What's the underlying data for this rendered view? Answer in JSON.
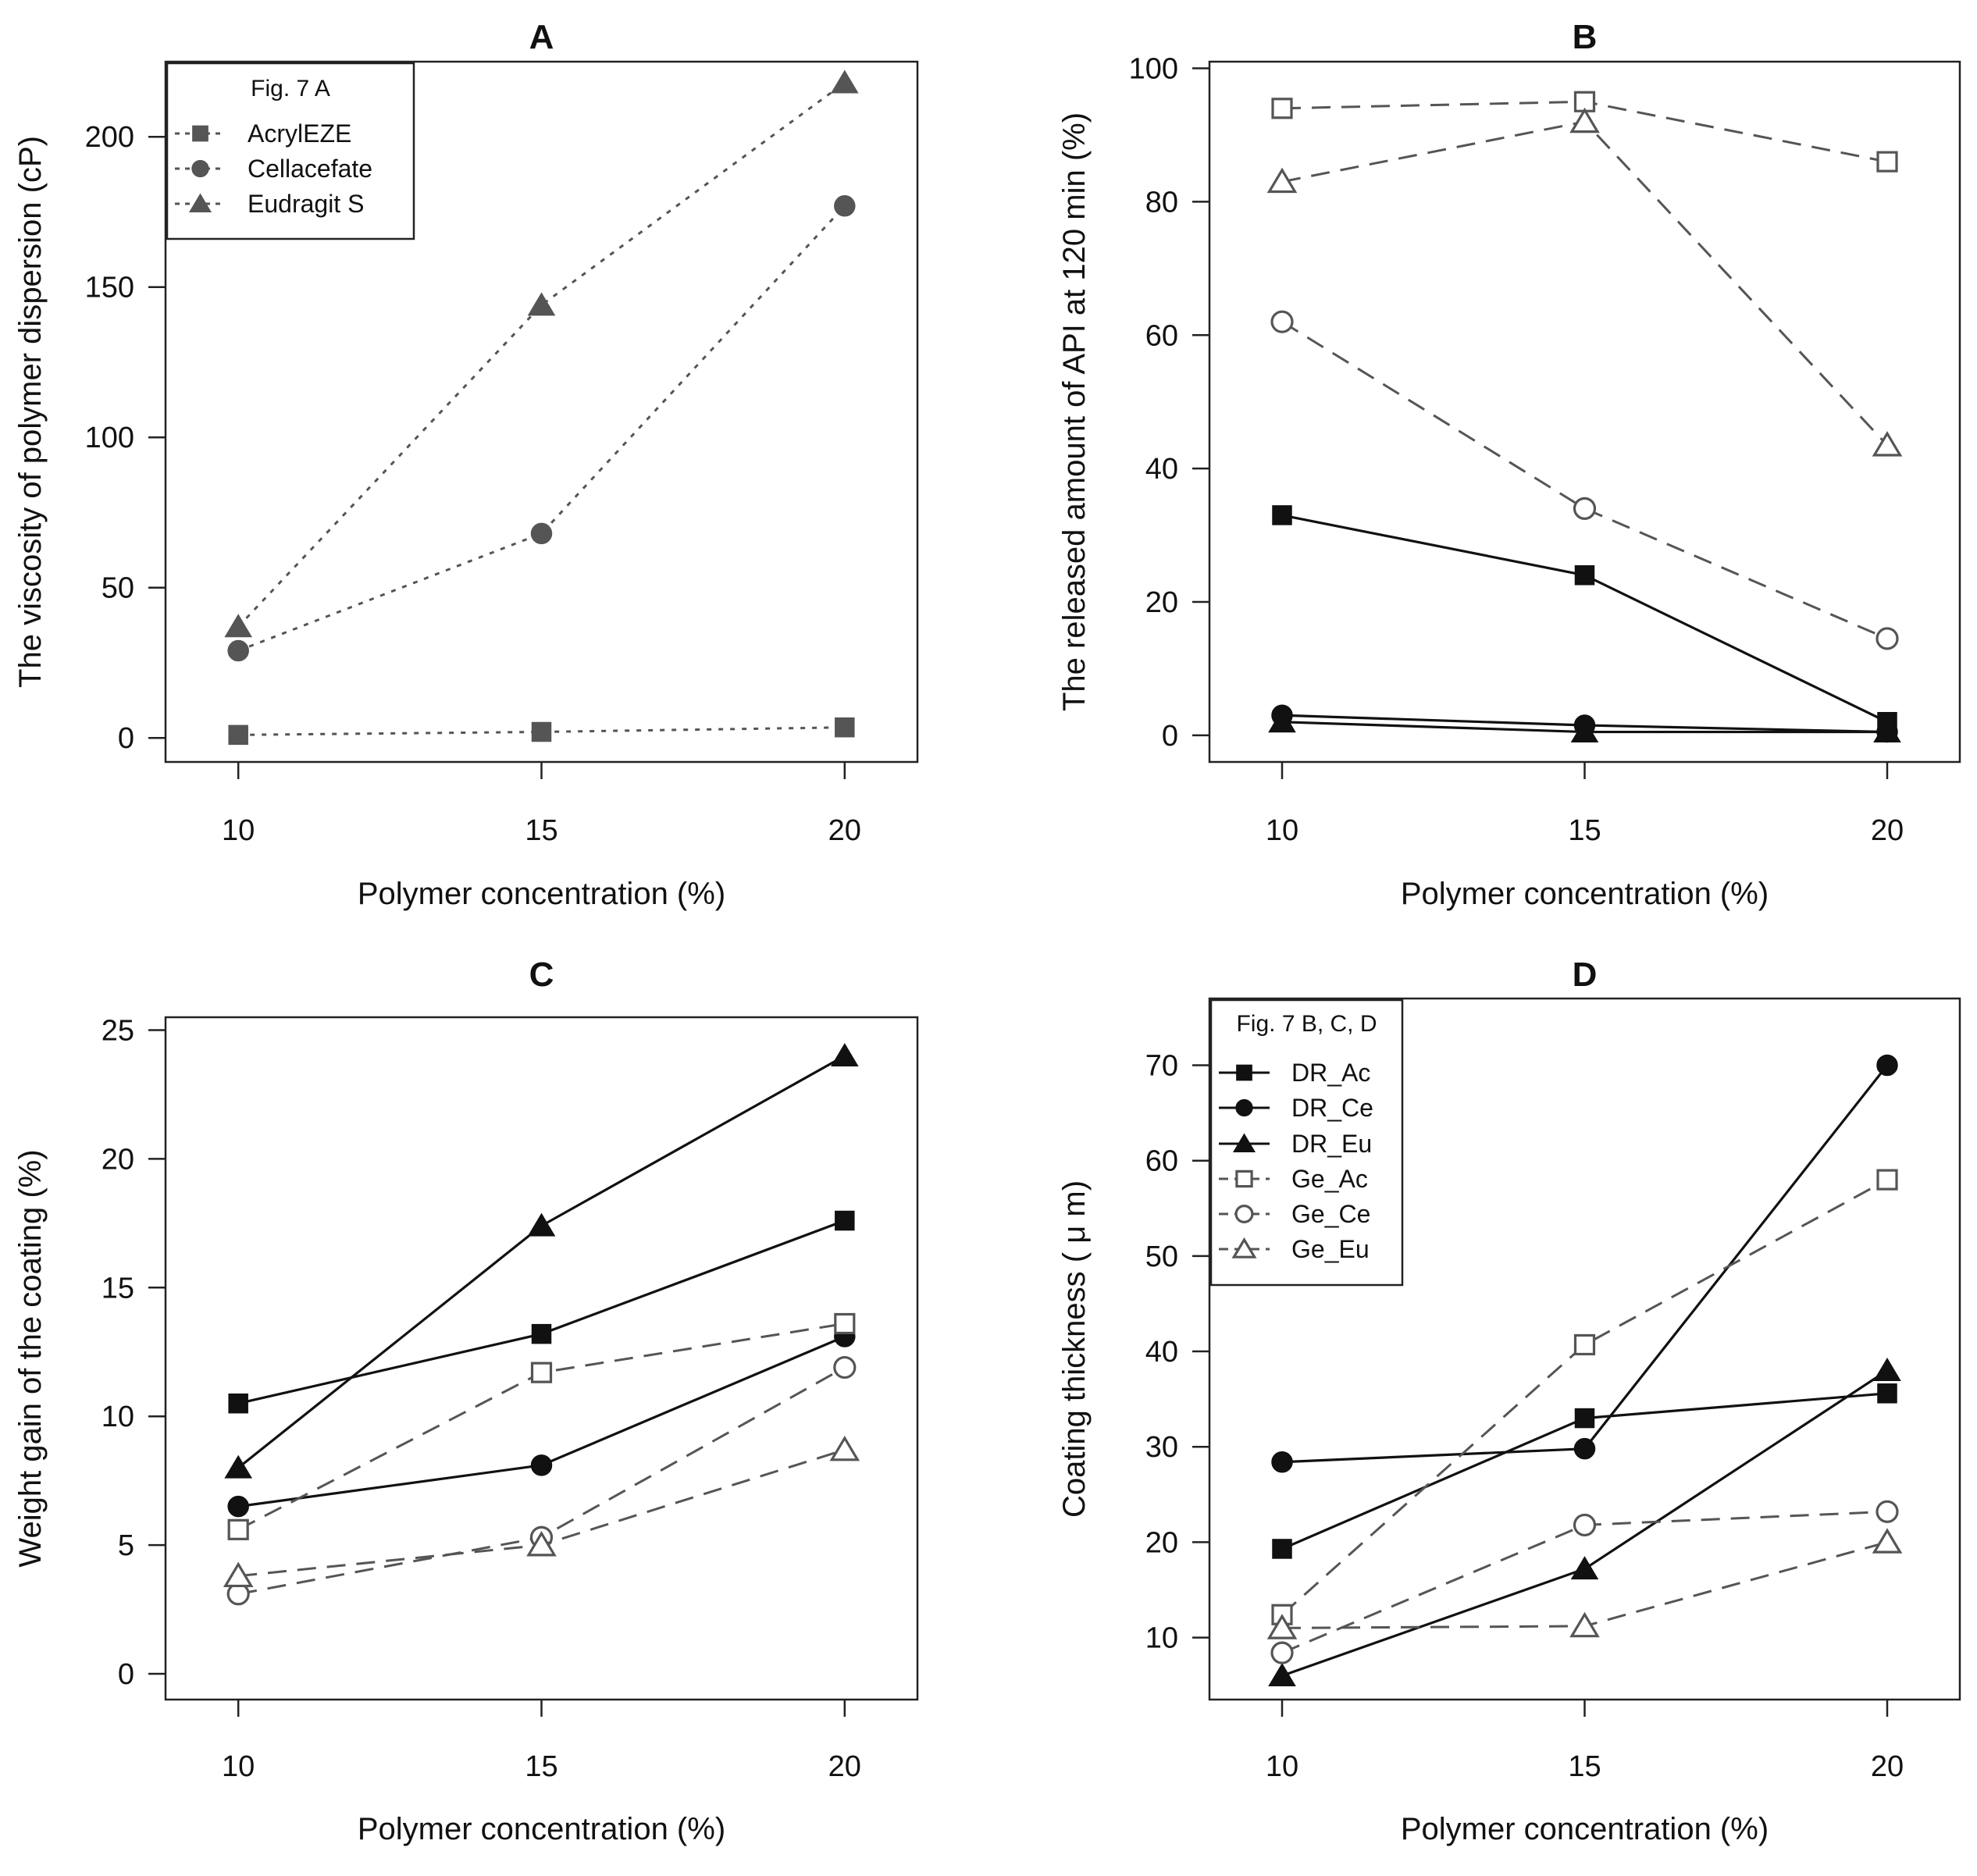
{
  "chart_data": [
    {
      "panel": "A",
      "type": "line",
      "title": "A",
      "xlabel": "Polymer concentration (%)",
      "ylabel": "The viscosity of polymer dispersion (cP)",
      "x": [
        10,
        15,
        20
      ],
      "xticks": [
        10,
        15,
        20
      ],
      "yticks": [
        0,
        50,
        100,
        150,
        200
      ],
      "ylim": [
        -8,
        225
      ],
      "grid": false,
      "legend": {
        "title": "Fig. 7 A",
        "position": "top-left"
      },
      "series": [
        {
          "name": "AcrylEZE",
          "values": [
            1,
            2,
            3.5
          ],
          "marker": "square",
          "filled": true,
          "linestyle": "dotted",
          "color": "#555555"
        },
        {
          "name": "Cellacefate",
          "values": [
            29,
            68,
            177
          ],
          "marker": "circle",
          "filled": true,
          "linestyle": "dotted",
          "color": "#555555"
        },
        {
          "name": "Eudragit S",
          "values": [
            37,
            144,
            218
          ],
          "marker": "triangle",
          "filled": true,
          "linestyle": "dotted",
          "color": "#555555"
        }
      ]
    },
    {
      "panel": "B",
      "type": "line",
      "title": "B",
      "xlabel": "Polymer concentration (%)",
      "ylabel": "The released amount of API at 120 min (%)",
      "x": [
        10,
        15,
        20
      ],
      "xticks": [
        10,
        15,
        20
      ],
      "yticks": [
        0,
        20,
        40,
        60,
        80,
        100
      ],
      "ylim": [
        -4,
        101
      ],
      "grid": false,
      "series": [
        {
          "name": "DR_Ac",
          "values": [
            33,
            24,
            2
          ],
          "marker": "square",
          "filled": true,
          "linestyle": "solid",
          "color": "#111111"
        },
        {
          "name": "DR_Ce",
          "values": [
            3,
            1.5,
            0.5
          ],
          "marker": "circle",
          "filled": true,
          "linestyle": "solid",
          "color": "#111111"
        },
        {
          "name": "DR_Eu",
          "values": [
            2,
            0.5,
            0.5
          ],
          "marker": "triangle",
          "filled": true,
          "linestyle": "solid",
          "color": "#111111"
        },
        {
          "name": "Ge_Ac",
          "values": [
            94,
            95,
            86
          ],
          "marker": "square",
          "filled": false,
          "linestyle": "dashed",
          "color": "#555555"
        },
        {
          "name": "Ge_Ce",
          "values": [
            62,
            34,
            14.5
          ],
          "marker": "circle",
          "filled": false,
          "linestyle": "dashed",
          "color": "#555555"
        },
        {
          "name": "Ge_Eu",
          "values": [
            83,
            92,
            43.5
          ],
          "marker": "triangle",
          "filled": false,
          "linestyle": "dashed",
          "color": "#555555"
        }
      ]
    },
    {
      "panel": "C",
      "type": "line",
      "title": "C",
      "xlabel": "Polymer concentration (%)",
      "ylabel": "Weight gain of the coating (%)",
      "x": [
        10,
        15,
        20
      ],
      "xticks": [
        10,
        15,
        20
      ],
      "yticks": [
        0,
        5,
        10,
        15,
        20,
        25
      ],
      "ylim": [
        -1,
        25.5
      ],
      "grid": false,
      "series": [
        {
          "name": "DR_Ac",
          "values": [
            10.5,
            13.2,
            17.6
          ],
          "marker": "square",
          "filled": true,
          "linestyle": "solid",
          "color": "#111111"
        },
        {
          "name": "DR_Ce",
          "values": [
            6.5,
            8.1,
            13.1
          ],
          "marker": "circle",
          "filled": true,
          "linestyle": "solid",
          "color": "#111111"
        },
        {
          "name": "DR_Eu",
          "values": [
            8.0,
            17.4,
            24.0
          ],
          "marker": "triangle",
          "filled": true,
          "linestyle": "solid",
          "color": "#111111"
        },
        {
          "name": "Ge_Ac",
          "values": [
            5.6,
            11.7,
            13.6
          ],
          "marker": "square",
          "filled": false,
          "linestyle": "dashed",
          "color": "#555555"
        },
        {
          "name": "Ge_Ce",
          "values": [
            3.1,
            5.3,
            11.9
          ],
          "marker": "circle",
          "filled": false,
          "linestyle": "dashed",
          "color": "#555555"
        },
        {
          "name": "Ge_Eu",
          "values": [
            3.8,
            5.0,
            8.7
          ],
          "marker": "triangle",
          "filled": false,
          "linestyle": "dashed",
          "color": "#555555"
        }
      ]
    },
    {
      "panel": "D",
      "type": "line",
      "title": "D",
      "xlabel": "Polymer concentration (%)",
      "ylabel": "Coating thickness ( μ m)",
      "x": [
        10,
        15,
        20
      ],
      "xticks": [
        10,
        15,
        20
      ],
      "yticks": [
        10,
        20,
        30,
        40,
        50,
        60,
        70
      ],
      "ylim": [
        3.5,
        77
      ],
      "grid": false,
      "legend": {
        "title": "Fig. 7 B, C, D",
        "position": "top-left"
      },
      "series": [
        {
          "name": "DR_Ac",
          "values": [
            19.3,
            33.0,
            35.6
          ],
          "marker": "square",
          "filled": true,
          "linestyle": "solid",
          "color": "#111111"
        },
        {
          "name": "DR_Ce",
          "values": [
            28.4,
            29.8,
            70.0
          ],
          "marker": "circle",
          "filled": true,
          "linestyle": "solid",
          "color": "#111111"
        },
        {
          "name": "DR_Eu",
          "values": [
            6.0,
            17.2,
            38.0
          ],
          "marker": "triangle",
          "filled": true,
          "linestyle": "solid",
          "color": "#111111"
        },
        {
          "name": "Ge_Ac",
          "values": [
            12.4,
            40.7,
            58.0
          ],
          "marker": "square",
          "filled": false,
          "linestyle": "dashed",
          "color": "#555555"
        },
        {
          "name": "Ge_Ce",
          "values": [
            8.4,
            21.8,
            23.2
          ],
          "marker": "circle",
          "filled": false,
          "linestyle": "dashed",
          "color": "#555555"
        },
        {
          "name": "Ge_Eu",
          "values": [
            11.0,
            11.2,
            20.0
          ],
          "marker": "triangle",
          "filled": false,
          "linestyle": "dashed",
          "color": "#555555"
        }
      ]
    }
  ]
}
